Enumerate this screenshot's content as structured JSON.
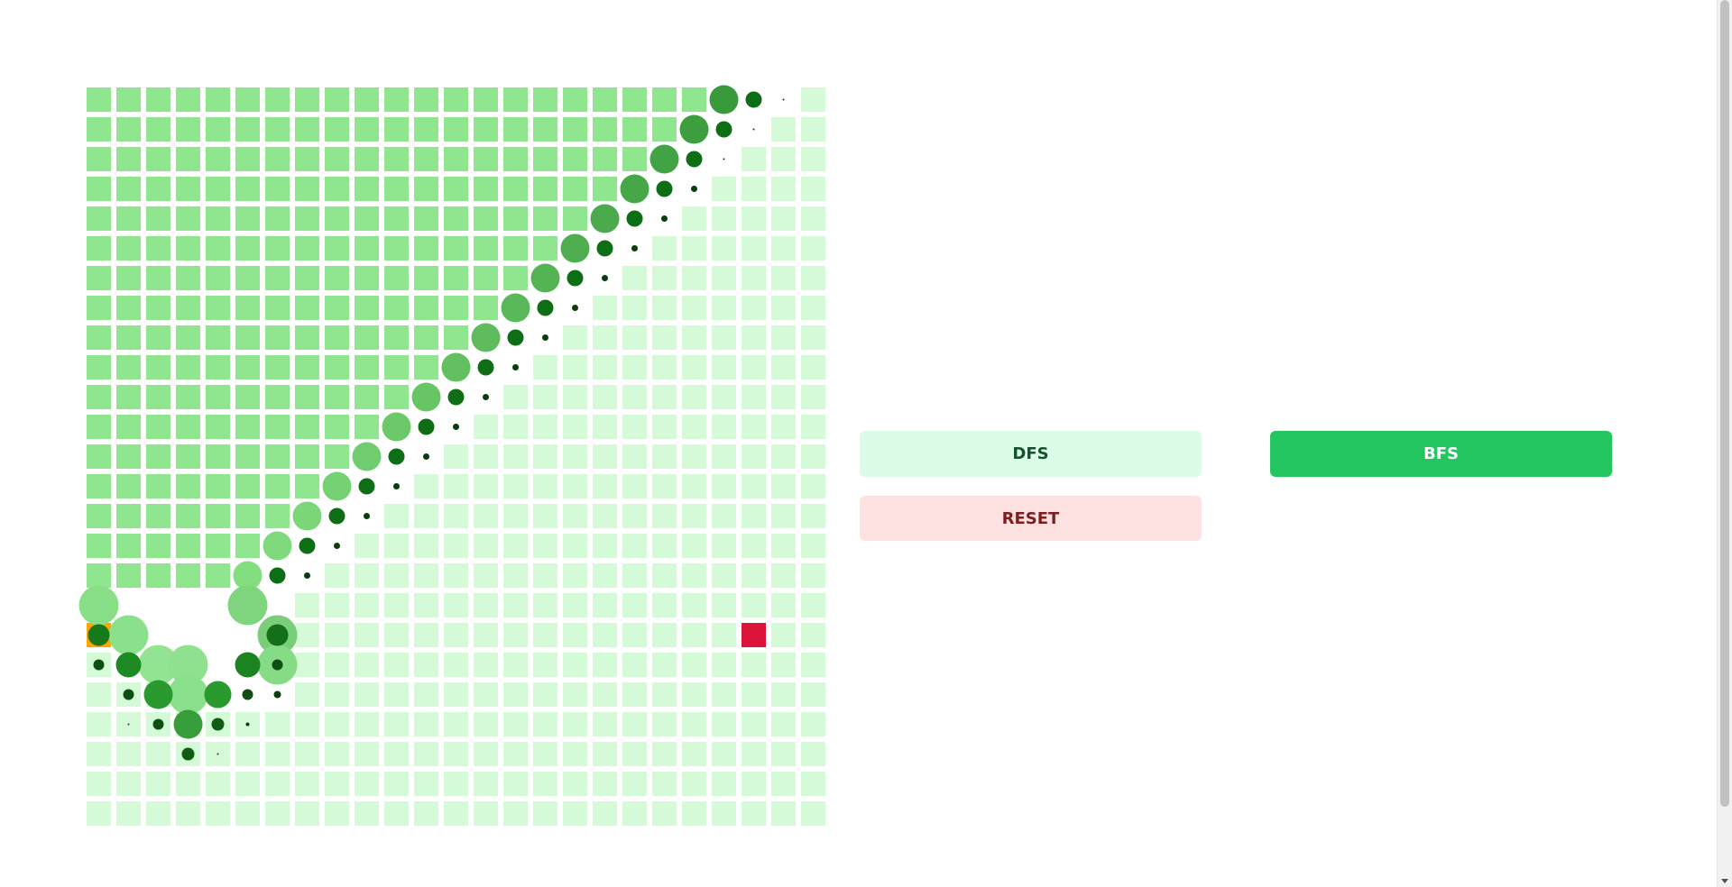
{
  "buttons": {
    "dfs": {
      "label": "DFS",
      "bg": "#dcfce7",
      "color": "#14532d"
    },
    "bfs": {
      "label": "BFS",
      "bg": "#22c55e",
      "color": "#ffffff"
    },
    "reset": {
      "label": "RESET",
      "bg": "#fee2e2",
      "color": "#7f1d1d"
    }
  },
  "grid": {
    "rows": 25,
    "cols": 25,
    "start": {
      "row": 18,
      "col": 0
    },
    "end": {
      "row": 18,
      "col": 22
    },
    "colors": {
      "visited": "#90e58f",
      "unvisited": "#d4fad8",
      "start": "#ffa500",
      "end": "#dc143c",
      "frontier_dark": "#0b5e12"
    }
  }
}
